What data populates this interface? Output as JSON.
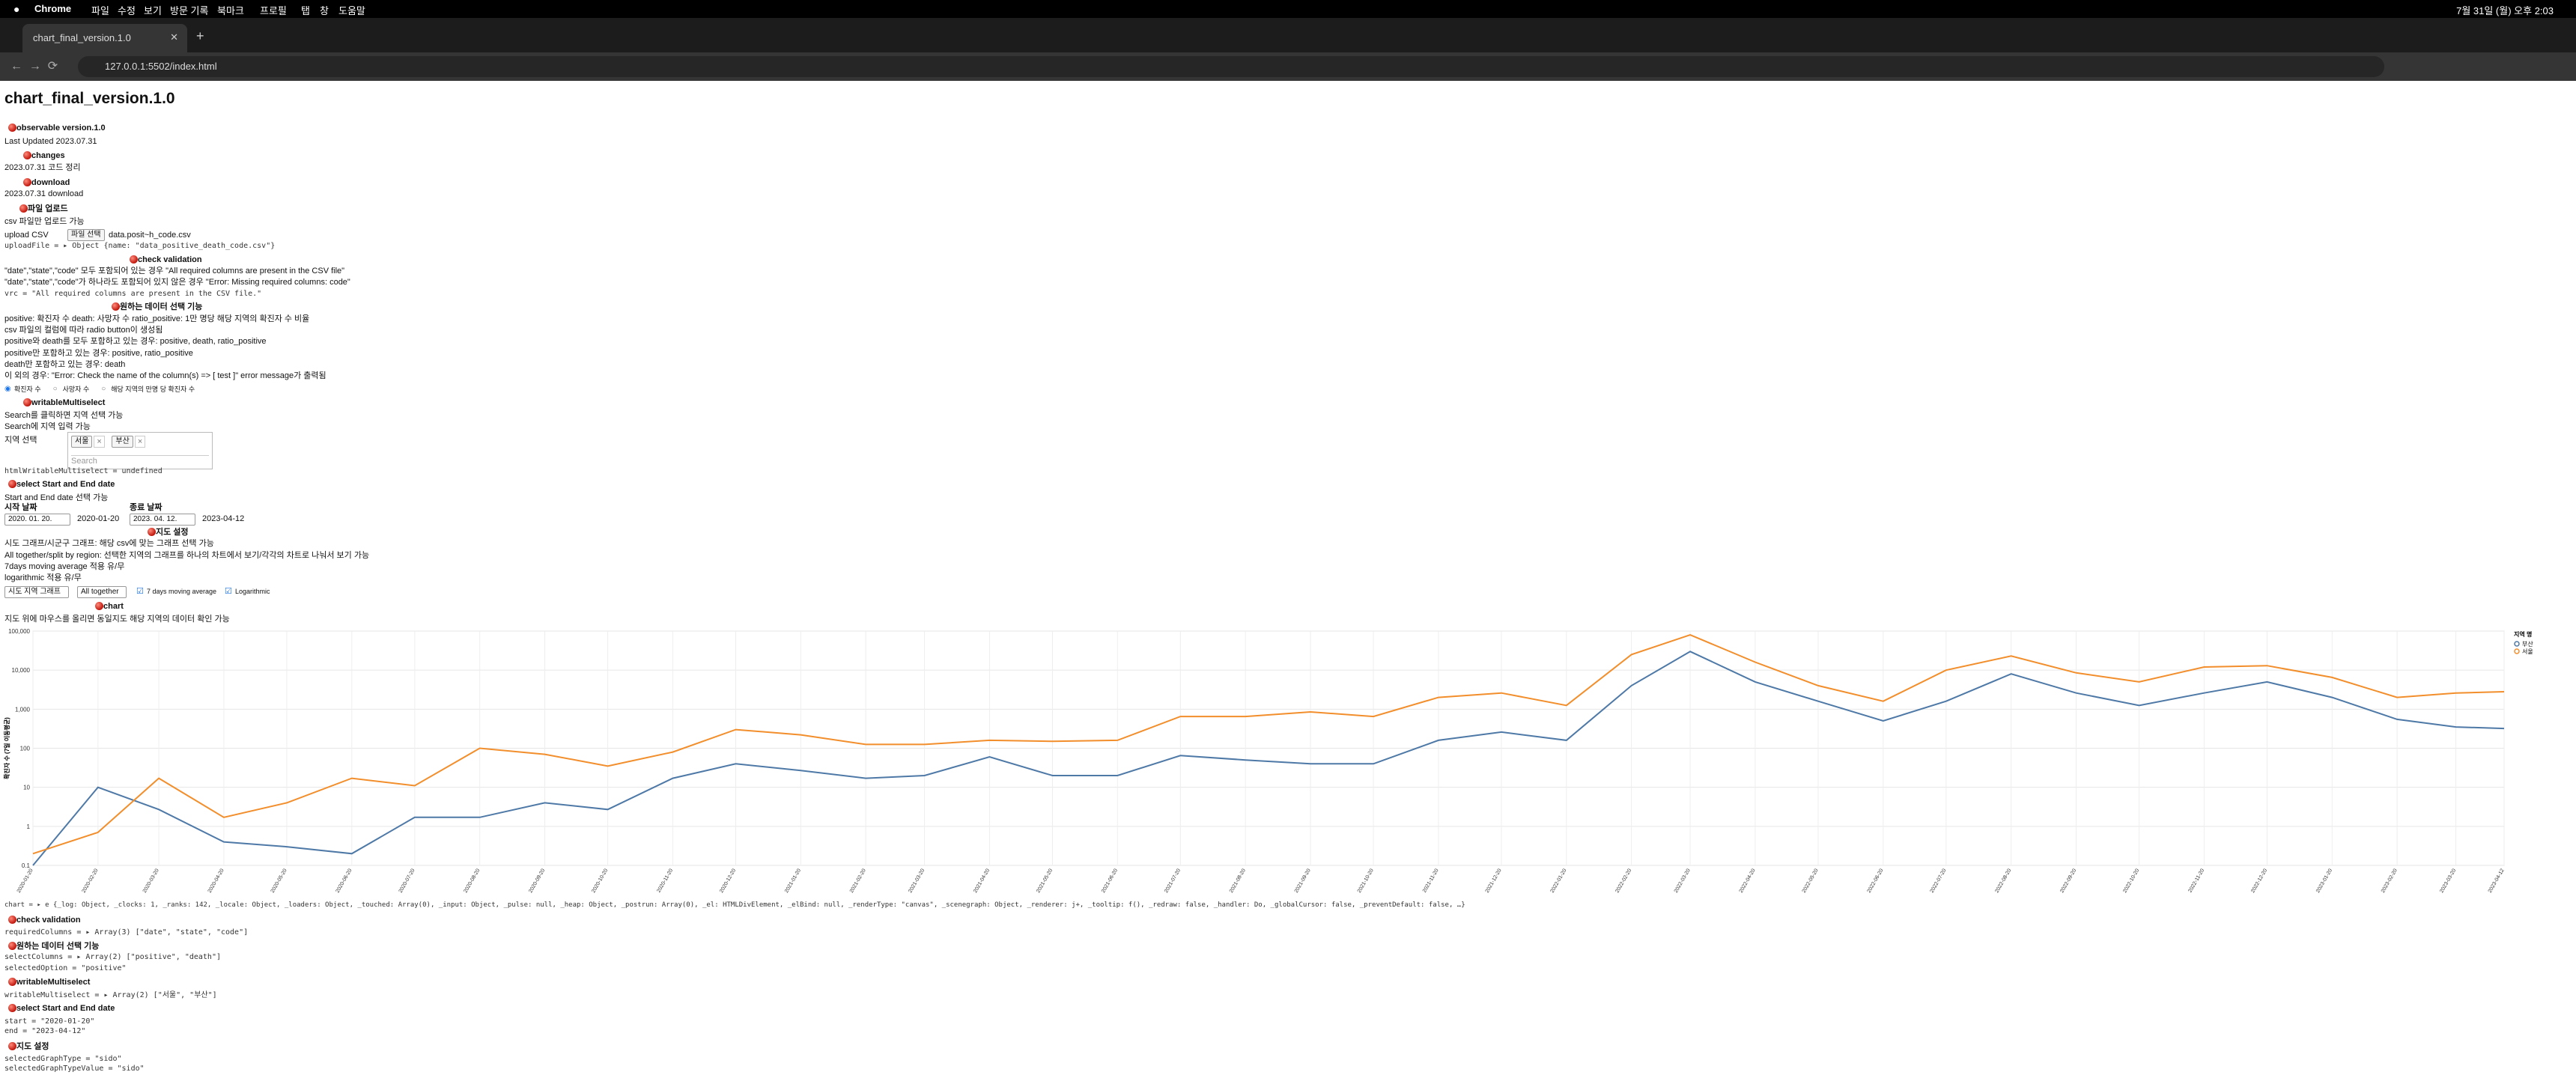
{
  "browser": {
    "menu": [
      "Chrome",
      "파일",
      "수정",
      "보기",
      "방문 기록",
      "북마크",
      "프로필",
      "탭",
      "창",
      "도움말"
    ],
    "tab_title": "chart_final_version.1.0",
    "url": "127.0.0.1:5502/index.html",
    "clock": "7월 31일 (월) 오후 2:03"
  },
  "page": {
    "title": "chart_final_version.1.0",
    "sections": [
      {
        "heading": "observable version.1.0",
        "lines": [
          "Last Updated 2023.07.31"
        ]
      },
      {
        "heading": "changes",
        "lines": [
          "2023.07.31 코드 정리"
        ]
      },
      {
        "heading": "download",
        "lines": [
          "2023.07.31 download"
        ]
      },
      {
        "heading": "파일 업로드",
        "lines": [
          "csv 파일만 업로드 가능"
        ]
      },
      {
        "heading": "check validation",
        "lines": [
          "\"date\",\"state\",\"code\" 모두 포함되어 있는 경우 \"All required columns are present in the CSV file\"",
          "\"date\",\"state\",\"code\"가 하나라도 포함되어 있지 않은 경우 \"Error: Missing required columns: code\""
        ]
      },
      {
        "heading": "원하는 데이터 선택 기능",
        "lines": [
          "positive: 확진자 수 death: 사망자 수 ratio_positive: 1만 명당 해당 지역의 확진자 수 비율",
          "csv 파일의 컬럼에 따라 radio button이 생성됨",
          "positive와 death를 모두 포함하고 있는 경우: positive, death, ratio_positive",
          "positive만 포함하고 있는 경우: positive, ratio_positive",
          "death만 포함하고 있는 경우: death",
          "이 외의 경우: \"Error: Check the name of the column(s) => [ test ]\" error message가 출력됨"
        ]
      },
      {
        "heading": "writableMultiselect",
        "lines": [
          "Search를 클릭하면 지역 선택 가능",
          "Search에 지역 입력 가능"
        ]
      },
      {
        "heading": "select Start and End date",
        "lines": [
          "Start and End date 선택 가능"
        ]
      },
      {
        "heading": "지도 설정",
        "lines": [
          "시도 그래프/시군구 그래프: 해당 csv에 맞는 그래프 선택 가능",
          "All together/split by region: 선택한 지역의 그래프를 하나의 차트에서 보기/각각의 차트로 나눠서 보기 가능",
          "7days moving average 적용 유/무",
          "logarithmic 적용 유/무"
        ]
      },
      {
        "heading": "chart",
        "lines": [
          "지도 위에 마우스를 올리면 동일지도 해당 지역의 데이터 확인 가능"
        ]
      }
    ],
    "upload": {
      "label": "upload CSV",
      "button": "파일 선택",
      "file": "data.posit~h_code.csv",
      "cell": "uploadFile = ▸ Object {name: \"data_positive_death_code.csv\"}"
    },
    "validation_cell": "vrc = \"All required columns are present in the CSV file.\"",
    "radios": [
      "확진자 수",
      "사망자 수",
      "해당 지역의 만명 당 확진자 수"
    ],
    "multiselect": {
      "label": "지역 선택",
      "tags": [
        "서울",
        "부산"
      ],
      "placeholder": "Search",
      "cell": "htmlWritableMultiselect = undefined"
    },
    "dates": {
      "start_label": "시작 날짜",
      "start_input": "2020. 01. 20.",
      "start": "2020-01-20",
      "end_label": "종료 날짜",
      "end_input": "2023. 04. 12.",
      "end": "2023-04-12"
    },
    "settings": {
      "graph_type": "시도 지역 그래프",
      "layout": "All together",
      "moving_average": "7 days moving average",
      "log": "Logarithmic"
    },
    "chart_cell": "chart = ▸ e {_log: Object, _clocks: 1, _ranks: 142, _locale: Object, _loaders: Object, _touched: Array(0), _input: Object, _pulse: null, _heap: Object, _postrun: Array(0), _el: HTMLDivElement, _elBind: null, _renderType: \"canvas\", _scenegraph: Object, _renderer: j+, _tooltip: f(), _redraw: false, _handler: Do, _globalCursor: false, _preventDefault: false, …}",
    "outputs": [
      {
        "heading": "check validation",
        "lines": [
          "requiredColumns = ▸ Array(3) [\"date\", \"state\", \"code\"]"
        ]
      },
      {
        "heading": "원하는 데이터 선택 기능",
        "lines": [
          "selectColumns = ▸ Array(2) [\"positive\", \"death\"]",
          "selectedOption = \"positive\""
        ]
      },
      {
        "heading": "writableMultiselect",
        "lines": [
          "writableMultiselect = ▸ Array(2) [\"서울\", \"부산\"]"
        ]
      },
      {
        "heading": "select Start and End date",
        "lines": [
          "start = \"2020-01-20\"",
          "end = \"2023-04-12\""
        ]
      },
      {
        "heading": "지도 설정",
        "lines": [
          "selectedGraphType = \"sido\"",
          "selectedGraphTypeValue = \"sido\""
        ]
      }
    ]
  },
  "chart_data": {
    "type": "line",
    "y_label": "확진자 수 (7일 이동평균)",
    "legend_title": "지역 명",
    "log": true,
    "grid": true,
    "x": [
      "2020-01-20",
      "2020-02-20",
      "2020-03-20",
      "2020-04-20",
      "2020-05-20",
      "2020-06-20",
      "2020-07-20",
      "2020-08-20",
      "2020-09-20",
      "2020-10-20",
      "2020-11-20",
      "2020-12-20",
      "2021-01-20",
      "2021-02-20",
      "2021-03-20",
      "2021-04-20",
      "2021-05-20",
      "2021-06-20",
      "2021-07-20",
      "2021-08-20",
      "2021-09-20",
      "2021-10-20",
      "2021-11-20",
      "2021-12-20",
      "2022-01-20",
      "2022-02-20",
      "2022-03-20",
      "2022-04-20",
      "2022-05-20",
      "2022-06-20",
      "2022-07-20",
      "2022-08-20",
      "2022-09-20",
      "2022-10-20",
      "2022-11-20",
      "2022-12-20",
      "2023-01-20",
      "2023-02-20",
      "2023-03-20",
      "2023-04-12"
    ],
    "series": [
      {
        "name": "부산",
        "color": "#4e79a7",
        "values": [
          0.1,
          10,
          2.7,
          0.4,
          0.3,
          0.2,
          1.7,
          1.7,
          4,
          2.7,
          17,
          40,
          27,
          17,
          20,
          60,
          20,
          20,
          65,
          50,
          40,
          40,
          160,
          260,
          160,
          4000,
          30000,
          5000,
          1600,
          500,
          1600,
          8000,
          2600,
          1250,
          2600,
          5000,
          2000,
          550,
          350,
          320
        ]
      },
      {
        "name": "서울",
        "color": "#f28e2b",
        "values": [
          0.2,
          0.7,
          17,
          1.7,
          4,
          17,
          11,
          100,
          70,
          35,
          80,
          300,
          220,
          125,
          125,
          160,
          150,
          160,
          650,
          650,
          850,
          650,
          2000,
          2600,
          1250,
          25000,
          80000,
          16000,
          4000,
          1600,
          10000,
          23000,
          8500,
          5000,
          12000,
          13000,
          6500,
          2000,
          2600,
          2800
        ]
      }
    ],
    "ylim": [
      0.1,
      100000
    ],
    "yticks": [
      0.1,
      1,
      10,
      100,
      {
        "value": 1000,
        "label": "1,000"
      },
      {
        "value": 10000,
        "label": "10,000"
      },
      {
        "value": 100000,
        "label": "100,000"
      }
    ]
  }
}
